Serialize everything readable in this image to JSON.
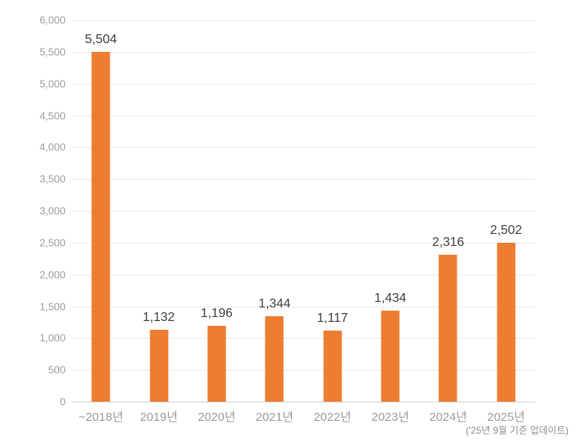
{
  "chart_data": {
    "type": "bar",
    "categories": [
      "~2018년",
      "2019년",
      "2020년",
      "2021년",
      "2022년",
      "2023년",
      "2024년",
      "2025년"
    ],
    "values": [
      5504,
      1132,
      1196,
      1344,
      1117,
      1434,
      2316,
      2502
    ],
    "value_labels": [
      "5,504",
      "1,132",
      "1,196",
      "1,344",
      "1,117",
      "1,434",
      "2,316",
      "2,502"
    ],
    "title": "",
    "xlabel": "",
    "ylabel": "",
    "ylim": [
      0,
      6000
    ],
    "y_tick_step": 500,
    "y_tick_labels": [
      "0",
      "500",
      "1,000",
      "1,500",
      "2,000",
      "2,500",
      "3,000",
      "3,500",
      "4,000",
      "4,500",
      "5,000",
      "5,500",
      "6,000"
    ],
    "grid": "horizontal",
    "legend": "none",
    "bar_color": "#ED7D31",
    "footnote": "('25년 9월 기준 업데이트)"
  }
}
